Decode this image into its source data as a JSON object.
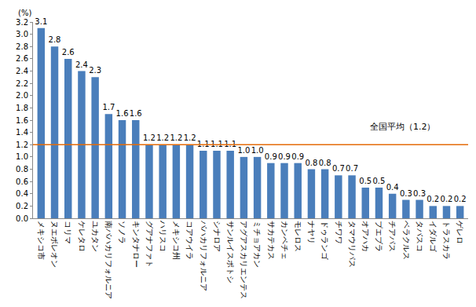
{
  "chart_data": {
    "type": "bar",
    "y_label": "(%)",
    "categories": [
      "メキシコ市",
      "ヌエボレオン",
      "コリマ",
      "ケレタロ",
      "ユカタン",
      "南バハカリフォルニア",
      "ソノラ",
      "キンタナロー",
      "グアナファト",
      "ハリスコ",
      "メキシコ州",
      "コアウイラ",
      "バハカリフォルニア",
      "シナロア",
      "サンルイスポトシ",
      "アグアスカリエンテス",
      "ミチョアカン",
      "サカテカス",
      "カンペチェ",
      "モレロス",
      "ナヤリ",
      "ドゥランゴ",
      "チワワ",
      "タマウリパス",
      "オアハカ",
      "プエブラ",
      "チアパス",
      "ベラクルス",
      "タバスコ",
      "イダルゴ",
      "トラスカラ",
      "ゲレロ"
    ],
    "values": [
      3.1,
      2.8,
      2.6,
      2.4,
      2.3,
      1.7,
      1.6,
      1.6,
      1.2,
      1.2,
      1.2,
      1.2,
      1.1,
      1.1,
      1.1,
      1.0,
      1.0,
      0.9,
      0.9,
      0.9,
      0.8,
      0.8,
      0.7,
      0.7,
      0.5,
      0.5,
      0.4,
      0.3,
      0.3,
      0.2,
      0.2,
      0.2
    ],
    "value_labels": [
      "3.1",
      "2.8",
      "2.6",
      "2.4",
      "2.3",
      "1.7",
      "1.6",
      "1.6",
      "1.2",
      "1.2",
      "1.2",
      "1.2",
      "1.1",
      "1.1",
      "1.1",
      "1.0",
      "1.0",
      "0.9",
      "0.9",
      "0.9",
      "0.8",
      "0.8",
      "0.7",
      "0.7",
      "0.5",
      "0.5",
      "0.4",
      "0.3",
      "0.3",
      "0.2",
      "0.2",
      "0.2"
    ],
    "color": "#4a7ebb",
    "data_labels": true,
    "grid": false,
    "ylim": [
      0,
      3.2
    ],
    "yticks": [
      {
        "value": 0,
        "label": "0.0"
      },
      0.2,
      0.4,
      0.6,
      0.8,
      {
        "value": 1,
        "label": "1.0"
      },
      1.2,
      1.4,
      1.6,
      1.8,
      {
        "value": 2,
        "label": "2.0"
      },
      2.2,
      2.4,
      2.6,
      2.8,
      {
        "value": 3,
        "label": "3.0"
      },
      3.2
    ],
    "reference_line": {
      "value": 1.2,
      "label": "全国平均（1.2）",
      "color": "#e46c0a"
    }
  }
}
